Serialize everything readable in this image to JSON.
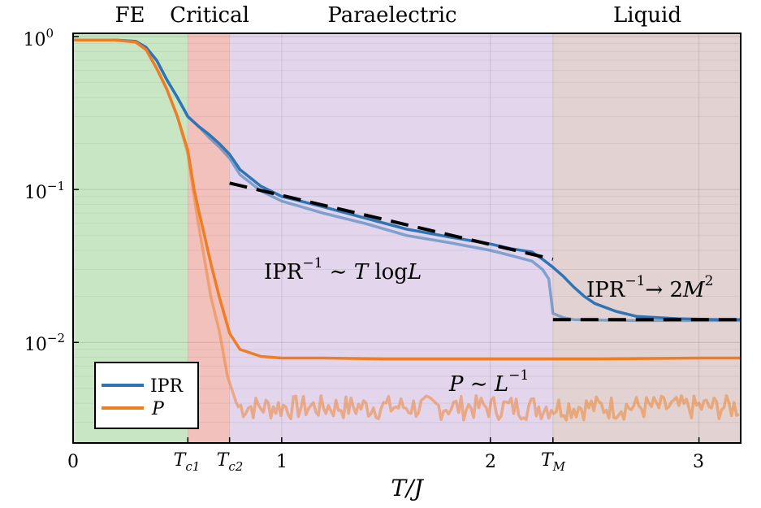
{
  "chart_data": {
    "type": "line",
    "xlabel": "T/J",
    "ylabel": "",
    "yscale": "log",
    "xlim": [
      0,
      3.2
    ],
    "ylim": [
      0.0022,
      1.05
    ],
    "x_ticks": [
      {
        "value": 0,
        "label": "0"
      },
      {
        "value": 1,
        "label": "1"
      },
      {
        "value": 2,
        "label": "2"
      },
      {
        "value": 3,
        "label": "3"
      }
    ],
    "x_special_ticks": [
      {
        "value": 0.55,
        "main": "T",
        "sub": "c1"
      },
      {
        "value": 0.75,
        "main": "T",
        "sub": "c2"
      },
      {
        "value": 2.3,
        "main": "T",
        "sub": "M"
      }
    ],
    "y_ticks": [
      {
        "value": 1,
        "base": "10",
        "exp": "0"
      },
      {
        "value": 0.1,
        "base": "10",
        "exp": "−1"
      },
      {
        "value": 0.01,
        "base": "10",
        "exp": "−2"
      }
    ],
    "regions": [
      {
        "name": "FE",
        "x0": 0,
        "x1": 0.55,
        "color": "#c9e6c4"
      },
      {
        "name": "Critical",
        "x0": 0.55,
        "x1": 0.75,
        "color": "#f3c1bc"
      },
      {
        "name": "Paraelectric",
        "x0": 0.75,
        "x1": 2.3,
        "color": "#e2d5ec"
      },
      {
        "name": "Liquid",
        "x0": 2.3,
        "x1": 3.2,
        "color": "#e2d2d1"
      }
    ],
    "legend_position": "bottom-left",
    "legend": [
      {
        "label": "IPR",
        "color": "#2f74b5",
        "italic": false
      },
      {
        "label": "P",
        "color": "#ef7d24",
        "italic": true
      }
    ],
    "series": [
      {
        "name": "IPR (dark)",
        "color": "#2f74b5",
        "opacity": 1.0,
        "x": [
          0,
          0.2,
          0.3,
          0.35,
          0.4,
          0.45,
          0.5,
          0.55,
          0.6,
          0.65,
          0.7,
          0.75,
          0.8,
          0.9,
          1.0,
          1.2,
          1.4,
          1.6,
          1.8,
          2.0,
          2.1,
          2.2,
          2.25,
          2.3,
          2.35,
          2.4,
          2.45,
          2.5,
          2.6,
          2.7,
          2.9,
          3.1,
          3.2
        ],
        "y": [
          0.95,
          0.95,
          0.93,
          0.85,
          0.7,
          0.52,
          0.4,
          0.3,
          0.26,
          0.23,
          0.2,
          0.17,
          0.135,
          0.105,
          0.09,
          0.077,
          0.065,
          0.055,
          0.049,
          0.044,
          0.041,
          0.039,
          0.035,
          0.031,
          0.027,
          0.023,
          0.02,
          0.018,
          0.016,
          0.0148,
          0.0143,
          0.0141,
          0.0141
        ]
      },
      {
        "name": "IPR (light)",
        "color": "#2f74b5",
        "opacity": 0.55,
        "x": [
          0,
          0.2,
          0.3,
          0.35,
          0.4,
          0.45,
          0.5,
          0.55,
          0.6,
          0.65,
          0.7,
          0.75,
          0.8,
          0.9,
          1.0,
          1.2,
          1.4,
          1.6,
          1.8,
          2.0,
          2.1,
          2.2,
          2.25,
          2.28,
          2.3,
          2.35,
          2.4,
          2.5,
          2.7,
          2.9,
          3.1,
          3.2
        ],
        "y": [
          0.95,
          0.95,
          0.93,
          0.85,
          0.7,
          0.52,
          0.4,
          0.3,
          0.26,
          0.22,
          0.19,
          0.16,
          0.125,
          0.098,
          0.084,
          0.07,
          0.06,
          0.05,
          0.045,
          0.04,
          0.037,
          0.034,
          0.03,
          0.026,
          0.0155,
          0.0145,
          0.0141,
          0.014,
          0.0139,
          0.0139,
          0.0139,
          0.0139
        ]
      },
      {
        "name": "P (dark)",
        "color": "#ef7d24",
        "opacity": 1.0,
        "x": [
          0,
          0.2,
          0.3,
          0.35,
          0.4,
          0.45,
          0.5,
          0.55,
          0.58,
          0.6,
          0.63,
          0.66,
          0.7,
          0.75,
          0.8,
          0.9,
          1.0,
          1.2,
          1.5,
          2.0,
          2.5,
          3.0,
          3.2
        ],
        "y": [
          0.95,
          0.95,
          0.92,
          0.82,
          0.62,
          0.45,
          0.3,
          0.18,
          0.1,
          0.075,
          0.05,
          0.033,
          0.02,
          0.0115,
          0.009,
          0.0081,
          0.0079,
          0.0079,
          0.0078,
          0.0078,
          0.0078,
          0.0079,
          0.0079
        ]
      },
      {
        "name": "P (light)",
        "color": "#ef7d24",
        "opacity": 0.5,
        "x": [
          0,
          0.2,
          0.3,
          0.35,
          0.4,
          0.45,
          0.5,
          0.55,
          0.58,
          0.6,
          0.63,
          0.66,
          0.7,
          0.74,
          0.78
        ],
        "y": [
          0.95,
          0.95,
          0.92,
          0.82,
          0.62,
          0.45,
          0.3,
          0.17,
          0.09,
          0.06,
          0.035,
          0.02,
          0.012,
          0.006,
          0.0041
        ],
        "noisy_tail": {
          "x_start": 0.78,
          "x_end": 3.2,
          "center": 0.0038,
          "spread": 0.0007
        }
      }
    ],
    "reference_lines": [
      {
        "name": "IPR^-1 ~ T log L",
        "x": [
          0.75,
          2.3
        ],
        "y": [
          0.11,
          0.035
        ],
        "color": "#000000",
        "dash": true
      },
      {
        "name": "IPR^-1 -> 2M^2",
        "x": [
          2.3,
          3.2
        ],
        "y": [
          0.0141,
          0.0141
        ],
        "color": "#000000",
        "dash": true
      }
    ],
    "annotations": [
      {
        "id": "ipr_scaling",
        "x": 0.92,
        "y": 0.028,
        "parts": [
          "IPR",
          "−1",
          " ∼ ",
          "T",
          " log",
          "L"
        ]
      },
      {
        "id": "ipr_limit",
        "x": 2.47,
        "y": 0.019,
        "parts": [
          "IPR",
          "−1",
          "→ 2",
          "M",
          "2"
        ]
      },
      {
        "id": "p_scaling",
        "x": 1.8,
        "y": 0.005,
        "parts": [
          "P",
          " ∼ ",
          "L",
          "−1"
        ]
      }
    ]
  }
}
